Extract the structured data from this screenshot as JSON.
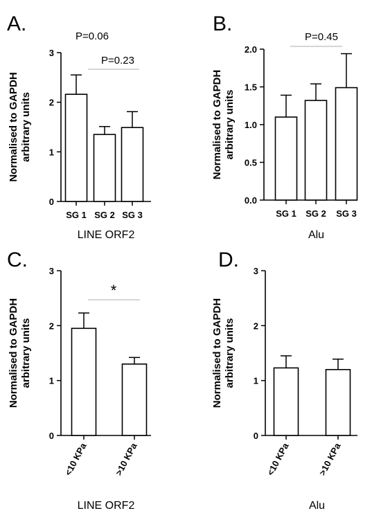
{
  "chart_data": [
    {
      "panel": "A.",
      "type": "bar",
      "ylabel": "Normalised to GAPDH arbitrary units",
      "xlabel": "LINE ORF2",
      "categories": [
        "SG 1",
        "SG 2",
        "SG 3"
      ],
      "values": [
        2.16,
        1.35,
        1.49
      ],
      "errors": [
        0.39,
        0.16,
        0.32
      ],
      "ylim": [
        0,
        3
      ],
      "yticks": [
        "0",
        "1",
        "2",
        "3"
      ],
      "rotate_xticks": false,
      "annotations": [
        {
          "text": "P=0.06",
          "from": null,
          "to": null
        },
        {
          "text": "P=0.23",
          "from": 1,
          "to": 2
        }
      ]
    },
    {
      "panel": "B.",
      "type": "bar",
      "ylabel": "Normalised to GAPDH arbitrary units",
      "xlabel": "Alu",
      "categories": [
        "SG 1",
        "SG 2",
        "SG 3"
      ],
      "values": [
        1.1,
        1.32,
        1.49
      ],
      "errors": [
        0.29,
        0.22,
        0.45
      ],
      "ylim": [
        0,
        2
      ],
      "yticks": [
        "0.0",
        "0.5",
        "1.0",
        "1.5",
        "2.0"
      ],
      "rotate_xticks": false,
      "annotations": [
        {
          "text": "P=0.45",
          "from": 0,
          "to": 2
        }
      ]
    },
    {
      "panel": "C.",
      "type": "bar",
      "ylabel": "Normalised to GAPDH arbitrary units",
      "xlabel": "LINE ORF2",
      "categories": [
        "<10 KPa",
        ">10 KPa"
      ],
      "values": [
        1.95,
        1.3
      ],
      "errors": [
        0.28,
        0.12
      ],
      "ylim": [
        0,
        3
      ],
      "yticks": [
        "0",
        "1",
        "2",
        "3"
      ],
      "rotate_xticks": true,
      "annotations": [
        {
          "text": "*",
          "from": 0,
          "to": 1
        }
      ]
    },
    {
      "panel": "D.",
      "type": "bar",
      "ylabel": "Normalised to GAPDH arbitrary units",
      "xlabel": "Alu",
      "categories": [
        "<10 KPa",
        ">10 KPa"
      ],
      "values": [
        1.23,
        1.2
      ],
      "errors": [
        0.22,
        0.19
      ],
      "ylim": [
        0,
        3
      ],
      "yticks": [
        "0",
        "1",
        "2",
        "3"
      ],
      "rotate_xticks": true,
      "annotations": []
    }
  ]
}
